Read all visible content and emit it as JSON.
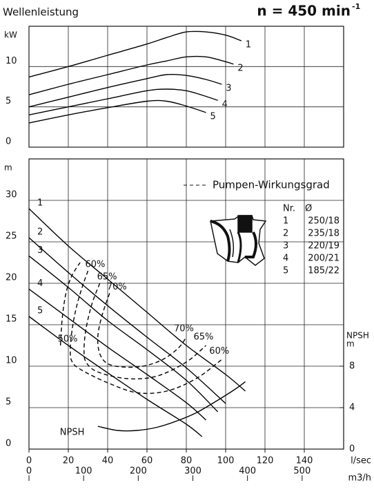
{
  "header": {
    "title": "Wellenleistung",
    "speed": "n = 450 min",
    "speed_exponent": "-1"
  },
  "chart_data": [
    {
      "type": "line",
      "ylabel": "kW",
      "xlim": [
        0,
        160
      ],
      "xticks": [
        0,
        20,
        40,
        60,
        80,
        100,
        120,
        140
      ],
      "ylim": [
        0,
        15
      ],
      "yticks": [
        0,
        5,
        10
      ],
      "grid": true,
      "series": [
        {
          "name": "1",
          "color": "#000000",
          "x": [
            0,
            20,
            40,
            60,
            70,
            80,
            90,
            100,
            108
          ],
          "values": [
            8.7,
            10.0,
            11.4,
            12.8,
            13.6,
            14.3,
            14.3,
            13.9,
            13.2
          ]
        },
        {
          "name": "2",
          "color": "#000000",
          "x": [
            0,
            20,
            40,
            60,
            70,
            80,
            90,
            100,
            104
          ],
          "values": [
            6.5,
            7.8,
            9.0,
            10.2,
            10.7,
            11.2,
            11.2,
            10.6,
            10.3
          ]
        },
        {
          "name": "3",
          "color": "#000000",
          "x": [
            0,
            20,
            40,
            60,
            70,
            80,
            90,
            98
          ],
          "values": [
            5.0,
            6.2,
            7.4,
            8.5,
            9.0,
            8.9,
            8.4,
            7.8
          ]
        },
        {
          "name": "4",
          "color": "#000000",
          "x": [
            0,
            20,
            40,
            60,
            70,
            80,
            90,
            96
          ],
          "values": [
            4.0,
            5.0,
            6.0,
            7.0,
            7.2,
            7.0,
            6.3,
            5.8
          ]
        },
        {
          "name": "5",
          "color": "#000000",
          "x": [
            0,
            20,
            40,
            60,
            70,
            80,
            90
          ],
          "values": [
            3.0,
            4.0,
            4.9,
            5.7,
            5.7,
            5.1,
            4.3
          ]
        }
      ]
    },
    {
      "type": "line",
      "ylabel": "m",
      "y2label": "NPSH",
      "y2unit": "m",
      "xlabel": "l/sec",
      "x2label": "m3/h",
      "xlim": [
        0,
        160
      ],
      "xticks": [
        0,
        20,
        40,
        60,
        80,
        100,
        120,
        140
      ],
      "x2lim": [
        0,
        576
      ],
      "x2ticks": [
        0,
        100,
        200,
        300,
        400,
        500
      ],
      "ylim": [
        0,
        35
      ],
      "yticks": [
        0,
        5,
        10,
        15,
        20,
        25,
        30
      ],
      "y2lim": [
        0,
        28
      ],
      "y2ticks": [
        0,
        4,
        8
      ],
      "grid": true,
      "legend_title": "Pumpen-Wirkungsgrad",
      "legend_columns": [
        "Nr.",
        "Ø"
      ],
      "legend_rows": [
        [
          "1",
          "250/18"
        ],
        [
          "2",
          "235/18"
        ],
        [
          "3",
          "220/19"
        ],
        [
          "4",
          "200/21"
        ],
        [
          "5",
          "185/22"
        ]
      ],
      "series": [
        {
          "name": "1",
          "color": "#000000",
          "x": [
            0,
            20,
            40,
            60,
            80,
            100,
            110
          ],
          "values": [
            29,
            24.5,
            20.5,
            16.5,
            12.5,
            9,
            7
          ]
        },
        {
          "name": "2",
          "color": "#000000",
          "x": [
            0,
            20,
            40,
            60,
            80,
            100
          ],
          "values": [
            25.5,
            21.3,
            17.3,
            13.5,
            9.8,
            5.5
          ]
        },
        {
          "name": "3",
          "color": "#000000",
          "x": [
            0,
            20,
            40,
            60,
            80,
            96
          ],
          "values": [
            23.3,
            19.5,
            15.5,
            12,
            8.3,
            4.5
          ]
        },
        {
          "name": "4",
          "color": "#000000",
          "x": [
            0,
            20,
            40,
            60,
            80,
            90
          ],
          "values": [
            19.3,
            15.8,
            12.3,
            9,
            5.6,
            3.5
          ]
        },
        {
          "name": "5",
          "color": "#000000",
          "x": [
            0,
            20,
            40,
            60,
            80,
            88
          ],
          "values": [
            16,
            12.5,
            9.2,
            6,
            3,
            1.5
          ]
        },
        {
          "name": "50%",
          "color": "#000000",
          "dashed": true,
          "x": [
            16,
            17,
            19,
            22,
            26
          ],
          "values": [
            12.5,
            16,
            19,
            21,
            22.5
          ]
        },
        {
          "name": "60%",
          "color": "#000000",
          "dashed": true,
          "x": [
            30,
            27,
            24,
            22,
            21,
            22,
            27,
            40,
            55,
            70,
            85,
            98
          ],
          "values": [
            21.5,
            19.5,
            17,
            14.5,
            12,
            10.5,
            9.5,
            8,
            6.8,
            7,
            8.5,
            10.8
          ]
        },
        {
          "name": "65%",
          "color": "#000000",
          "dashed": true,
          "x": [
            36,
            32,
            29,
            28,
            29,
            35,
            50,
            65,
            80,
            90
          ],
          "values": [
            20,
            17.5,
            14.5,
            12,
            10.5,
            9.3,
            8.5,
            8.8,
            10.5,
            12.5
          ]
        },
        {
          "name": "70%",
          "color": "#000000",
          "dashed": true,
          "x": [
            41,
            37,
            35,
            36,
            40,
            48,
            58,
            68,
            76,
            80
          ],
          "values": [
            18.8,
            16,
            13.5,
            11.5,
            10.3,
            9.9,
            10,
            10.8,
            12.2,
            13.5
          ]
        },
        {
          "name": "NPSH",
          "color": "#000000",
          "axis": "y2",
          "x": [
            35,
            45,
            55,
            65,
            75,
            85,
            95,
            105,
            110
          ],
          "values": [
            2.2,
            1.8,
            1.8,
            2.1,
            2.7,
            3.5,
            4.6,
            5.8,
            6.5
          ]
        }
      ]
    }
  ]
}
